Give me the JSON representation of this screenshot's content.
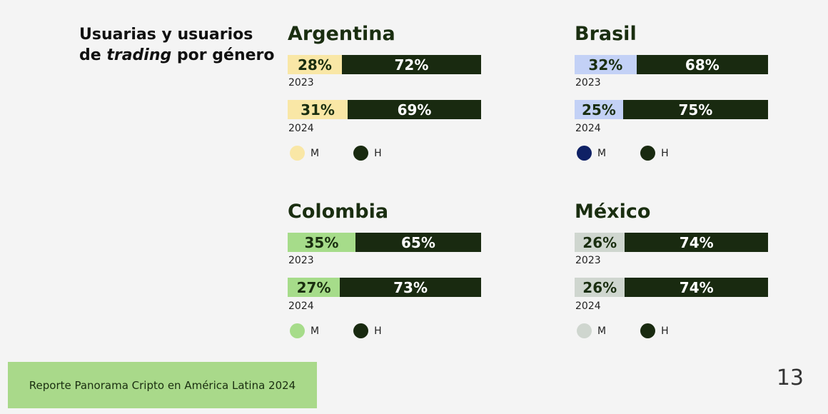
{
  "title": {
    "line1": "Usuarias y usuarios",
    "line2_pre": "de ",
    "line2_italic": "trading",
    "line2_post": " por género"
  },
  "legend": {
    "m_label": "M",
    "h_label": "H"
  },
  "colors": {
    "h": "#192a10",
    "Argentina": "#f9e7a6",
    "Brasil": "#c3d1f6",
    "Brasil_legend": "#0f2165",
    "Colombia": "#a6dc8a",
    "México": "#cfd6cf"
  },
  "chart_data": {
    "type": "bar",
    "stacked": true,
    "orientation": "horizontal",
    "title": "Usuarias y usuarios de trading por género",
    "categories": [
      "2023",
      "2024"
    ],
    "legend_entries": [
      "M",
      "H"
    ],
    "panels": [
      {
        "country": "Argentina",
        "rows": [
          {
            "year": "2023",
            "m": 28,
            "h": 72,
            "m_label": "28%",
            "h_label": "72%"
          },
          {
            "year": "2024",
            "m": 31,
            "h": 69,
            "m_label": "31%",
            "h_label": "69%"
          }
        ]
      },
      {
        "country": "Brasil",
        "rows": [
          {
            "year": "2023",
            "m": 32,
            "h": 68,
            "m_label": "32%",
            "h_label": "68%"
          },
          {
            "year": "2024",
            "m": 25,
            "h": 75,
            "m_label": "25%",
            "h_label": "75%"
          }
        ]
      },
      {
        "country": "Colombia",
        "rows": [
          {
            "year": "2023",
            "m": 35,
            "h": 65,
            "m_label": "35%",
            "h_label": "65%"
          },
          {
            "year": "2024",
            "m": 27,
            "h": 73,
            "m_label": "27%",
            "h_label": "73%"
          }
        ]
      },
      {
        "country": "México",
        "rows": [
          {
            "year": "2023",
            "m": 26,
            "h": 74,
            "m_label": "26%",
            "h_label": "74%"
          },
          {
            "year": "2024",
            "m": 26,
            "h": 74,
            "m_label": "26%",
            "h_label": "74%"
          }
        ]
      }
    ]
  },
  "footer": {
    "text": "Reporte Panorama Cripto en América Latina 2024"
  },
  "page_number": "13"
}
